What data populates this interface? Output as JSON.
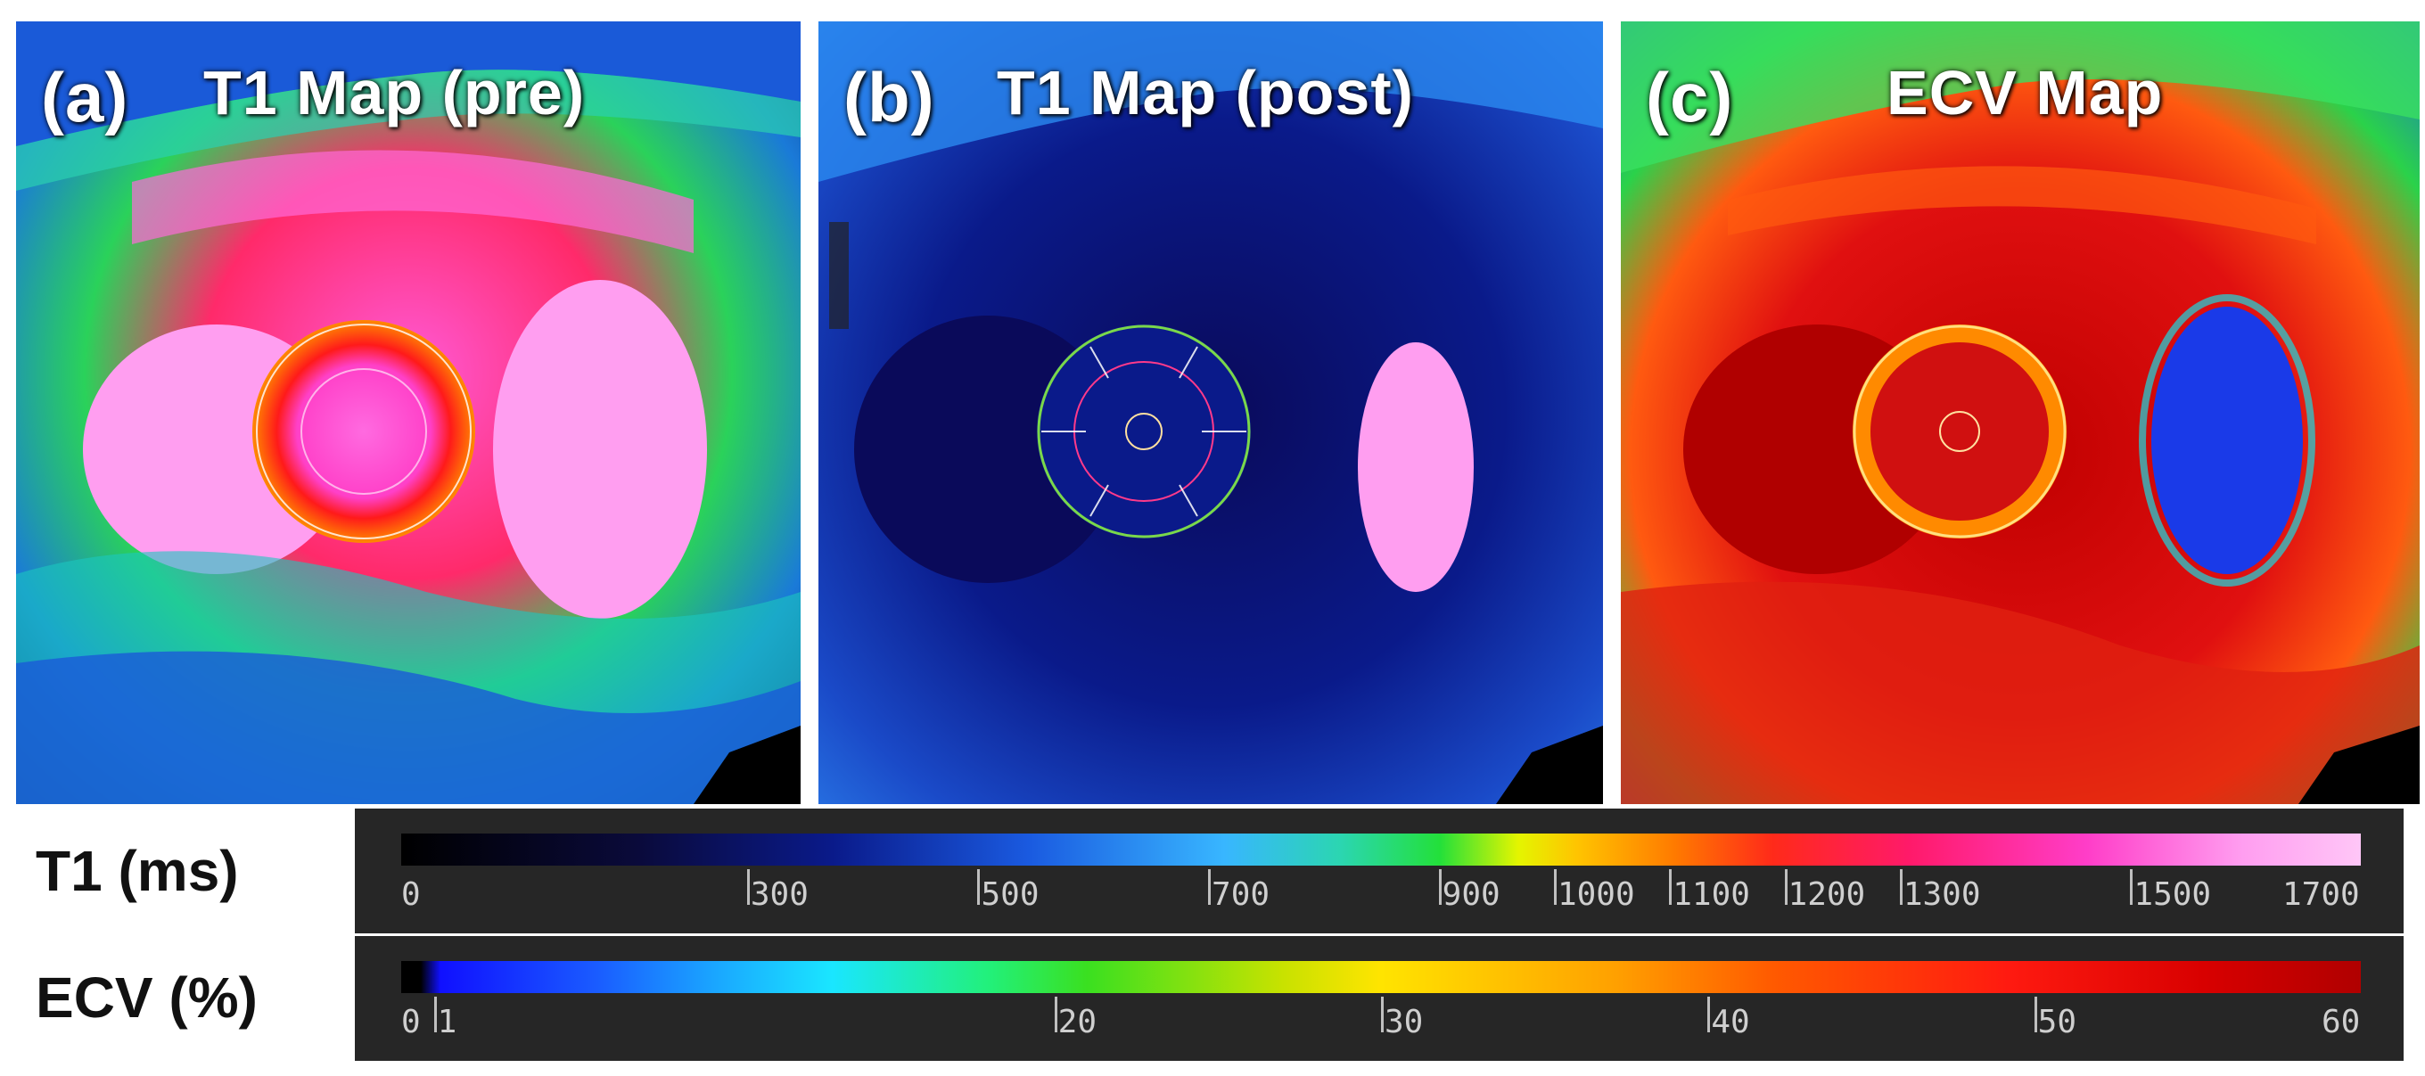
{
  "panels": [
    {
      "id": "a",
      "letter": "(a)",
      "title": "T1 Map (pre)"
    },
    {
      "id": "b",
      "letter": "(b)",
      "title": "T1 Map (post)"
    },
    {
      "id": "c",
      "letter": "(c)",
      "title": "ECV Map"
    }
  ],
  "scales": {
    "t1": {
      "label": "T1 (ms)",
      "min": 0,
      "max": 1700,
      "ticks": [
        "0",
        "300",
        "500",
        "700",
        "900",
        "1000",
        "1100",
        "1200",
        "1300",
        "1500",
        "1700"
      ],
      "tick_values": [
        0,
        300,
        500,
        700,
        900,
        1000,
        1100,
        1200,
        1300,
        1500,
        1700
      ]
    },
    "ecv": {
      "label": "ECV (%)",
      "min": 0,
      "max": 60,
      "ticks": [
        "0",
        "1",
        "20",
        "30",
        "40",
        "50",
        "60"
      ],
      "tick_values": [
        0,
        1,
        20,
        30,
        40,
        50,
        60
      ]
    }
  }
}
